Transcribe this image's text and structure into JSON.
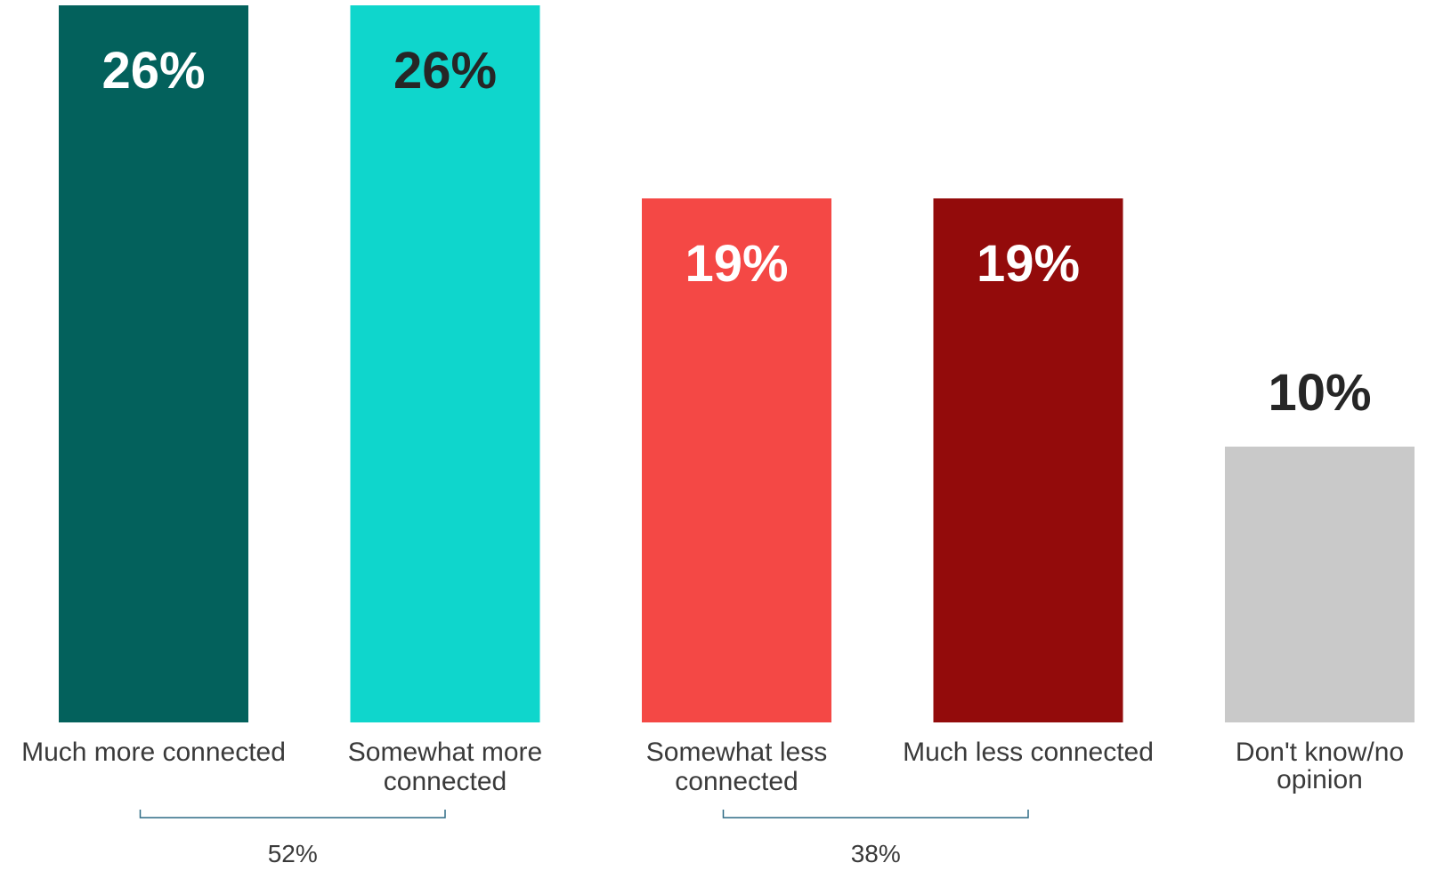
{
  "chart_data": {
    "type": "bar",
    "categories": [
      "Much more connected",
      "Somewhat more connected",
      "Somewhat less connected",
      "Much less connected",
      "Don't know/no opinion"
    ],
    "category_lines": [
      [
        "Much more connected"
      ],
      [
        "Somewhat more",
        "connected"
      ],
      [
        "Somewhat less",
        "connected"
      ],
      [
        "Much less connected"
      ],
      [
        "Don't know/no",
        "opinion"
      ]
    ],
    "values": [
      26,
      26,
      19,
      19,
      10
    ],
    "value_labels": [
      "26%",
      "26%",
      "19%",
      "19%",
      "10%"
    ],
    "colors": [
      "#03615c",
      "#0fd6cc",
      "#f44845",
      "#930b0b",
      "#c9c9c9"
    ],
    "value_label_colors": [
      "#ffffff",
      "#262626",
      "#ffffff",
      "#ffffff",
      "#262626"
    ],
    "value_label_position": [
      "inside",
      "inside",
      "inside",
      "inside",
      "outside"
    ],
    "ylim": [
      0,
      26
    ],
    "grid": false,
    "legend": "none",
    "groups": [
      {
        "label": "52%",
        "from": 0,
        "to": 1
      },
      {
        "label": "38%",
        "from": 2,
        "to": 3
      }
    ],
    "bracket_color": "#2f6b86"
  }
}
